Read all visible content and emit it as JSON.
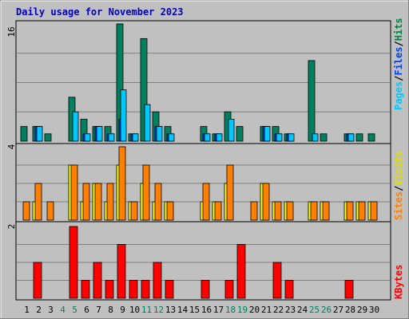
{
  "chart_data": [
    {
      "type": "bar",
      "title": "Daily usage for November 2023",
      "panel": "hits-files-pages",
      "ymax_label": "16",
      "ylim": [
        0,
        16
      ],
      "legend": [
        {
          "label": "Pages",
          "color": "#00c8ff"
        },
        {
          "label": "/",
          "color": "#000000"
        },
        {
          "label": "Files",
          "color": "#0040ff"
        },
        {
          "label": "/",
          "color": "#000000"
        },
        {
          "label": "Hits",
          "color": "#008040"
        }
      ],
      "categories": [
        "1",
        "2",
        "3",
        "4",
        "5",
        "6",
        "7",
        "8",
        "9",
        "10",
        "11",
        "12",
        "13",
        "14",
        "15",
        "16",
        "17",
        "18",
        "19",
        "20",
        "21",
        "22",
        "23",
        "24",
        "25",
        "26",
        "27",
        "28",
        "29",
        "30"
      ],
      "series": [
        {
          "name": "Hits",
          "color": "#008060",
          "values": [
            2,
            2,
            1,
            0,
            6,
            3,
            2,
            2,
            16,
            1,
            14,
            4,
            2,
            0,
            0,
            2,
            1,
            4,
            2,
            0,
            2,
            2,
            1,
            0,
            11,
            1,
            0,
            1,
            1,
            1
          ]
        },
        {
          "name": "Files",
          "color": "#0040ff",
          "values": [
            0,
            2,
            0,
            0,
            0,
            1,
            2,
            1,
            3,
            1,
            0,
            2,
            1,
            0,
            0,
            1,
            1,
            0,
            0,
            0,
            2,
            1,
            1,
            0,
            0,
            0,
            0,
            1,
            0,
            0
          ]
        },
        {
          "name": "Pages",
          "color": "#00c8ff",
          "values": [
            0,
            2,
            0,
            0,
            4,
            1,
            2,
            1,
            7,
            1,
            5,
            2,
            1,
            0,
            0,
            1,
            1,
            3,
            0,
            0,
            2,
            1,
            1,
            0,
            1,
            0,
            0,
            1,
            0,
            0
          ]
        }
      ]
    },
    {
      "type": "bar",
      "panel": "visits-sites",
      "ymax_label": "4",
      "ylim": [
        0,
        4
      ],
      "legend": [
        {
          "label": "Sites",
          "color": "#ff8000"
        },
        {
          "label": "/",
          "color": "#000000"
        },
        {
          "label": "Visits",
          "color": "#ffff00"
        }
      ],
      "series": [
        {
          "name": "Visits",
          "color": "#ffff00",
          "values": [
            0,
            1,
            0,
            0,
            3,
            1,
            2,
            1,
            3,
            1,
            2,
            1,
            1,
            0,
            0,
            1,
            1,
            2,
            0,
            0,
            2,
            1,
            1,
            0,
            1,
            1,
            0,
            1,
            1,
            1
          ]
        },
        {
          "name": "Sites",
          "color": "#ff8000",
          "values": [
            1,
            2,
            1,
            0,
            3,
            2,
            2,
            2,
            4,
            1,
            3,
            2,
            1,
            0,
            0,
            2,
            1,
            3,
            0,
            1,
            2,
            1,
            1,
            0,
            1,
            1,
            0,
            1,
            1,
            1
          ]
        }
      ]
    },
    {
      "type": "bar",
      "panel": "kbytes",
      "ymax_label": "2",
      "ylim": [
        0,
        2
      ],
      "legend": [
        {
          "label": "KBytes",
          "color": "#ff0000"
        }
      ],
      "series": [
        {
          "name": "KBytes",
          "color": "#ff0000",
          "values": [
            0,
            1,
            0,
            0,
            2,
            0.5,
            1,
            0.5,
            1.5,
            0.5,
            0.5,
            1,
            0.5,
            0,
            0,
            0.5,
            0,
            0.5,
            1.5,
            0,
            0,
            1,
            0.5,
            0,
            0,
            0,
            0,
            0.5,
            0,
            0
          ]
        }
      ]
    }
  ],
  "x_axis": {
    "labels": [
      "1",
      "2",
      "3",
      "4",
      "5",
      "6",
      "7",
      "8",
      "9",
      "10",
      "11",
      "12",
      "13",
      "14",
      "15",
      "16",
      "17",
      "18",
      "19",
      "20",
      "21",
      "22",
      "23",
      "24",
      "25",
      "26",
      "27",
      "28",
      "29",
      "30"
    ],
    "weekend_days": [
      "4",
      "5",
      "11",
      "12",
      "18",
      "19",
      "25",
      "26"
    ],
    "weekday_color": "#000000",
    "weekend_color": "#00805c"
  },
  "colors": {
    "background": "#c0c0c0",
    "title": "#0000c0",
    "grid": "#808080"
  }
}
